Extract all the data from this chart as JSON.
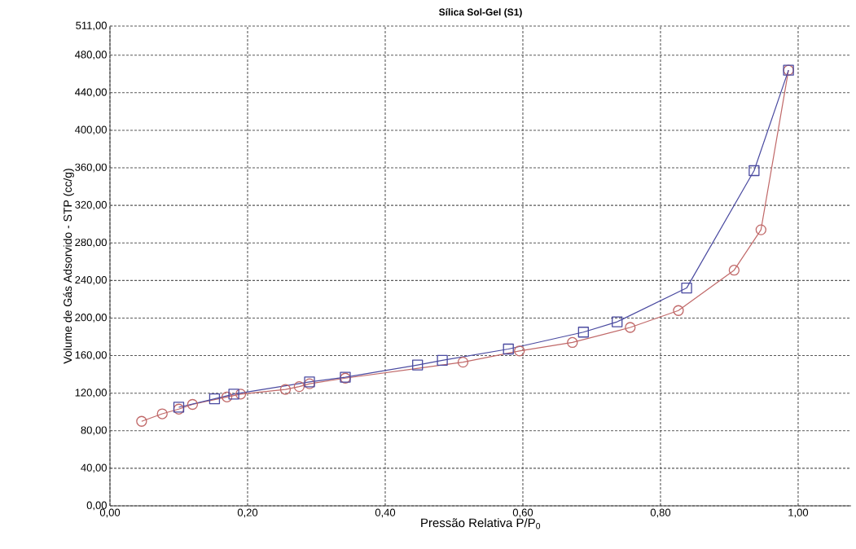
{
  "chart_data": {
    "type": "line",
    "title": "Sílica Sol-Gel (S1)",
    "xlabel": "Pressão Relativa P/P$_{0}$",
    "ylabel": "Volume de Gás Adsorvido - STP (cc/g)",
    "xlim": [
      0,
      1.077
    ],
    "ylim": [
      0,
      511
    ],
    "xticks": [
      {
        "value": 0,
        "label": "0,00"
      },
      {
        "value": 0.2,
        "label": "0,20"
      },
      {
        "value": 0.4,
        "label": "0,40"
      },
      {
        "value": 0.6,
        "label": "0,60"
      },
      {
        "value": 0.8,
        "label": "0,80"
      },
      {
        "value": 1.0,
        "label": "1,00"
      }
    ],
    "yticks": [
      {
        "value": 0,
        "label": "0,00"
      },
      {
        "value": 40,
        "label": "40,00"
      },
      {
        "value": 80,
        "label": "80,00"
      },
      {
        "value": 120,
        "label": "120,00"
      },
      {
        "value": 160,
        "label": "160,00"
      },
      {
        "value": 200,
        "label": "200,00"
      },
      {
        "value": 240,
        "label": "240,00"
      },
      {
        "value": 280,
        "label": "280,00"
      },
      {
        "value": 320,
        "label": "320,00"
      },
      {
        "value": 360,
        "label": "360,00"
      },
      {
        "value": 400,
        "label": "400,00"
      },
      {
        "value": 440,
        "label": "440,00"
      },
      {
        "value": 480,
        "label": "480,00"
      },
      {
        "value": 511,
        "label": "511,00"
      }
    ],
    "grid": true,
    "line_style": "solid",
    "series": [
      {
        "color": "#c06868",
        "marker": "circle",
        "x": [
          0.046,
          0.076,
          0.1,
          0.12,
          0.17,
          0.19,
          0.255,
          0.275,
          0.29,
          0.342,
          0.513,
          0.595,
          0.672,
          0.756,
          0.826,
          0.907,
          0.946,
          0.986
        ],
        "values": [
          90,
          98,
          103,
          108,
          116,
          119,
          124,
          127,
          130,
          136,
          153,
          165,
          174,
          190,
          208,
          251,
          294,
          464
        ]
      },
      {
        "color": "#4a4aa0",
        "marker": "square",
        "x": [
          0.1,
          0.152,
          0.18,
          0.29,
          0.342,
          0.447,
          0.483,
          0.579,
          0.688,
          0.737,
          0.838,
          0.936,
          0.986
        ],
        "values": [
          105,
          114,
          119,
          132,
          137,
          150,
          155,
          167,
          185,
          196,
          232,
          357,
          464
        ]
      }
    ]
  }
}
